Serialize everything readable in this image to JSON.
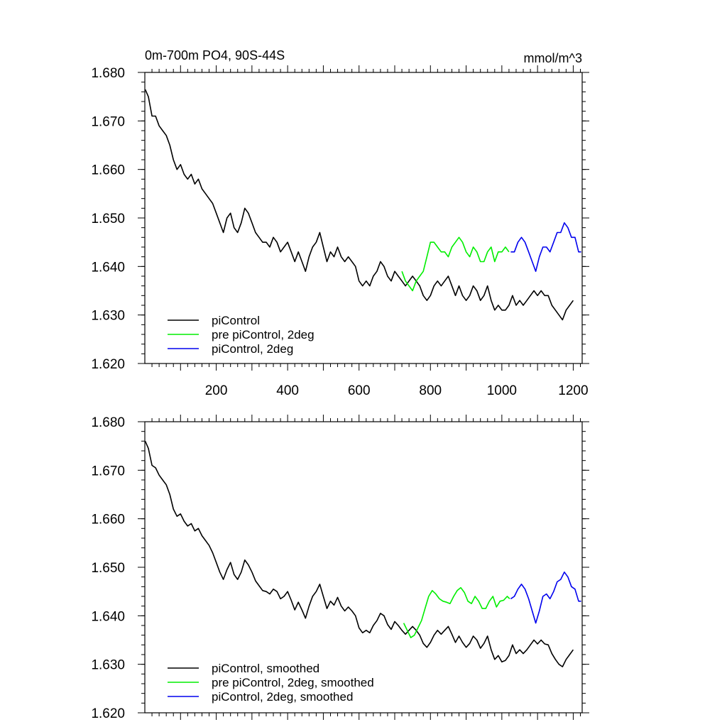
{
  "chart_data": [
    {
      "type": "line",
      "title": "0m-700m PO4, 90S-44S",
      "units": "mmol/m^3",
      "xlabel": "",
      "ylabel": "",
      "xlim": [
        0,
        1225
      ],
      "ylim": [
        1.62,
        1.68
      ],
      "x_ticks": [
        200,
        400,
        600,
        800,
        1000,
        1200
      ],
      "y_ticks": [
        "1.620",
        "1.630",
        "1.640",
        "1.650",
        "1.660",
        "1.670",
        "1.680"
      ],
      "y_tick_values": [
        1.62,
        1.63,
        1.64,
        1.65,
        1.66,
        1.67,
        1.68
      ],
      "grid": false,
      "legend_position": "bottom-left",
      "series": [
        {
          "name": "piControl",
          "color": "#000000",
          "x": [
            1,
            10,
            20,
            30,
            40,
            50,
            60,
            70,
            80,
            90,
            100,
            110,
            120,
            130,
            140,
            150,
            160,
            170,
            180,
            190,
            200,
            210,
            220,
            230,
            240,
            250,
            260,
            270,
            280,
            290,
            300,
            310,
            320,
            330,
            340,
            350,
            360,
            370,
            380,
            390,
            400,
            410,
            420,
            430,
            440,
            450,
            460,
            470,
            480,
            490,
            500,
            510,
            520,
            530,
            540,
            550,
            560,
            570,
            580,
            590,
            600,
            610,
            620,
            630,
            640,
            650,
            660,
            670,
            680,
            690,
            700,
            710,
            720,
            730,
            740,
            750,
            760,
            770,
            780,
            790,
            800,
            810,
            820,
            830,
            840,
            850,
            860,
            870,
            880,
            890,
            900,
            910,
            920,
            930,
            940,
            950,
            960,
            970,
            980,
            990,
            1000,
            1010,
            1020,
            1030,
            1040,
            1050,
            1060,
            1070,
            1080,
            1090,
            1100,
            1110,
            1120,
            1130,
            1140,
            1150,
            1160,
            1170,
            1180,
            1190,
            1200
          ],
          "y": [
            1.6765,
            1.675,
            1.671,
            1.671,
            1.669,
            1.668,
            1.667,
            1.665,
            1.662,
            1.66,
            1.661,
            1.659,
            1.658,
            1.659,
            1.657,
            1.658,
            1.656,
            1.655,
            1.654,
            1.653,
            1.651,
            1.649,
            1.647,
            1.65,
            1.651,
            1.648,
            1.647,
            1.649,
            1.652,
            1.651,
            1.649,
            1.647,
            1.646,
            1.645,
            1.645,
            1.644,
            1.646,
            1.645,
            1.643,
            1.644,
            1.645,
            1.643,
            1.641,
            1.643,
            1.641,
            1.639,
            1.642,
            1.644,
            1.645,
            1.647,
            1.644,
            1.641,
            1.643,
            1.642,
            1.644,
            1.642,
            1.641,
            1.642,
            1.641,
            1.64,
            1.637,
            1.636,
            1.637,
            1.636,
            1.638,
            1.639,
            1.641,
            1.64,
            1.638,
            1.637,
            1.639,
            1.638,
            1.637,
            1.636,
            1.637,
            1.638,
            1.637,
            1.636,
            1.634,
            1.633,
            1.634,
            1.636,
            1.637,
            1.636,
            1.637,
            1.638,
            1.636,
            1.634,
            1.636,
            1.634,
            1.633,
            1.634,
            1.636,
            1.635,
            1.633,
            1.634,
            1.636,
            1.633,
            1.631,
            1.632,
            1.631,
            1.631,
            1.632,
            1.634,
            1.632,
            1.633,
            1.632,
            1.633,
            1.634,
            1.635,
            1.634,
            1.635,
            1.634,
            1.634,
            1.632,
            1.631,
            1.63,
            1.629,
            1.631,
            1.632,
            1.633
          ]
        },
        {
          "name": "pre piControl, 2deg",
          "color": "#00ee00",
          "x": [
            720,
            730,
            740,
            750,
            760,
            770,
            780,
            790,
            800,
            810,
            820,
            830,
            840,
            850,
            860,
            870,
            880,
            890,
            900,
            910,
            920,
            930,
            940,
            950,
            960,
            970,
            980,
            990,
            1000,
            1010,
            1020
          ],
          "y": [
            1.639,
            1.637,
            1.636,
            1.635,
            1.637,
            1.638,
            1.639,
            1.642,
            1.645,
            1.645,
            1.644,
            1.643,
            1.643,
            1.642,
            1.644,
            1.645,
            1.646,
            1.645,
            1.643,
            1.642,
            1.644,
            1.643,
            1.641,
            1.641,
            1.643,
            1.644,
            1.641,
            1.643,
            1.643,
            1.644,
            1.643
          ]
        },
        {
          "name": "piControl, 2deg",
          "color": "#0000ee",
          "x": [
            1025,
            1035,
            1045,
            1055,
            1065,
            1075,
            1085,
            1095,
            1105,
            1115,
            1125,
            1135,
            1145,
            1155,
            1165,
            1175,
            1185,
            1195,
            1205,
            1215,
            1222
          ],
          "y": [
            1.643,
            1.643,
            1.645,
            1.646,
            1.645,
            1.643,
            1.641,
            1.639,
            1.642,
            1.644,
            1.644,
            1.643,
            1.645,
            1.647,
            1.647,
            1.649,
            1.648,
            1.646,
            1.646,
            1.643,
            1.643
          ]
        }
      ]
    },
    {
      "type": "line",
      "title": "",
      "xlabel": "",
      "ylabel": "",
      "xlim": [
        0,
        1225
      ],
      "ylim": [
        1.62,
        1.68
      ],
      "y_ticks": [
        "1.620",
        "1.630",
        "1.640",
        "1.650",
        "1.660",
        "1.670",
        "1.680"
      ],
      "y_tick_values": [
        1.62,
        1.63,
        1.64,
        1.65,
        1.66,
        1.67,
        1.68
      ],
      "grid": false,
      "legend_position": "bottom-left",
      "series": [
        {
          "name": "piControl, smoothed",
          "color": "#000000",
          "x": [
            1,
            10,
            20,
            30,
            40,
            50,
            60,
            70,
            80,
            90,
            100,
            110,
            120,
            130,
            140,
            150,
            160,
            170,
            180,
            190,
            200,
            210,
            220,
            230,
            240,
            250,
            260,
            270,
            280,
            290,
            300,
            310,
            320,
            330,
            340,
            350,
            360,
            370,
            380,
            390,
            400,
            410,
            420,
            430,
            440,
            450,
            460,
            470,
            480,
            490,
            500,
            510,
            520,
            530,
            540,
            550,
            560,
            570,
            580,
            590,
            600,
            610,
            620,
            630,
            640,
            650,
            660,
            670,
            680,
            690,
            700,
            710,
            720,
            730,
            740,
            750,
            760,
            770,
            780,
            790,
            800,
            810,
            820,
            830,
            840,
            850,
            860,
            870,
            880,
            890,
            900,
            910,
            920,
            930,
            940,
            950,
            960,
            970,
            980,
            990,
            1000,
            1010,
            1020,
            1030,
            1040,
            1050,
            1060,
            1070,
            1080,
            1090,
            1100,
            1110,
            1120,
            1130,
            1140,
            1150,
            1160,
            1170,
            1180,
            1190,
            1200
          ],
          "y": [
            1.676,
            1.6745,
            1.671,
            1.6705,
            1.669,
            1.668,
            1.667,
            1.665,
            1.662,
            1.6605,
            1.661,
            1.6595,
            1.6585,
            1.659,
            1.6575,
            1.658,
            1.6565,
            1.6555,
            1.6545,
            1.653,
            1.651,
            1.649,
            1.6475,
            1.6495,
            1.651,
            1.6485,
            1.6475,
            1.649,
            1.6515,
            1.6505,
            1.649,
            1.6472,
            1.6462,
            1.6452,
            1.645,
            1.6445,
            1.6455,
            1.645,
            1.6435,
            1.644,
            1.645,
            1.6432,
            1.6412,
            1.6428,
            1.6412,
            1.6395,
            1.642,
            1.644,
            1.645,
            1.6465,
            1.644,
            1.6415,
            1.643,
            1.6422,
            1.6438,
            1.642,
            1.641,
            1.6418,
            1.641,
            1.64,
            1.6375,
            1.6365,
            1.637,
            1.6365,
            1.638,
            1.639,
            1.6405,
            1.64,
            1.6382,
            1.6372,
            1.6388,
            1.638,
            1.637,
            1.6362,
            1.637,
            1.6378,
            1.637,
            1.636,
            1.6343,
            1.6335,
            1.6345,
            1.636,
            1.637,
            1.6362,
            1.637,
            1.6378,
            1.6362,
            1.6345,
            1.6358,
            1.6345,
            1.6335,
            1.6343,
            1.6358,
            1.635,
            1.6333,
            1.6343,
            1.6358,
            1.633,
            1.631,
            1.6318,
            1.6305,
            1.6308,
            1.6318,
            1.634,
            1.6322,
            1.633,
            1.6322,
            1.633,
            1.634,
            1.635,
            1.6342,
            1.635,
            1.6342,
            1.634,
            1.6322,
            1.631,
            1.63,
            1.6295,
            1.631,
            1.632,
            1.633
          ]
        },
        {
          "name": "pre piControl, 2deg, smoothed",
          "color": "#00ee00",
          "x": [
            725,
            735,
            745,
            755,
            765,
            775,
            785,
            795,
            805,
            815,
            825,
            835,
            845,
            855,
            865,
            875,
            885,
            895,
            905,
            915,
            925,
            935,
            945,
            955,
            965,
            975,
            985,
            995,
            1005,
            1015,
            1022
          ],
          "y": [
            1.6385,
            1.637,
            1.6355,
            1.636,
            1.6375,
            1.639,
            1.6415,
            1.644,
            1.6452,
            1.6445,
            1.6435,
            1.643,
            1.6428,
            1.6425,
            1.644,
            1.6452,
            1.6458,
            1.6448,
            1.643,
            1.6425,
            1.644,
            1.643,
            1.6415,
            1.6415,
            1.643,
            1.644,
            1.6418,
            1.643,
            1.6432,
            1.644,
            1.6435
          ]
        },
        {
          "name": "piControl, 2deg, smoothed",
          "color": "#0000ee",
          "x": [
            1025,
            1035,
            1045,
            1055,
            1065,
            1075,
            1085,
            1095,
            1105,
            1115,
            1125,
            1135,
            1145,
            1155,
            1165,
            1175,
            1185,
            1195,
            1205,
            1215,
            1222
          ],
          "y": [
            1.6435,
            1.644,
            1.6455,
            1.6465,
            1.6455,
            1.6435,
            1.641,
            1.6385,
            1.641,
            1.644,
            1.6445,
            1.6435,
            1.645,
            1.647,
            1.6475,
            1.649,
            1.648,
            1.646,
            1.6455,
            1.643,
            1.643
          ]
        }
      ]
    }
  ]
}
